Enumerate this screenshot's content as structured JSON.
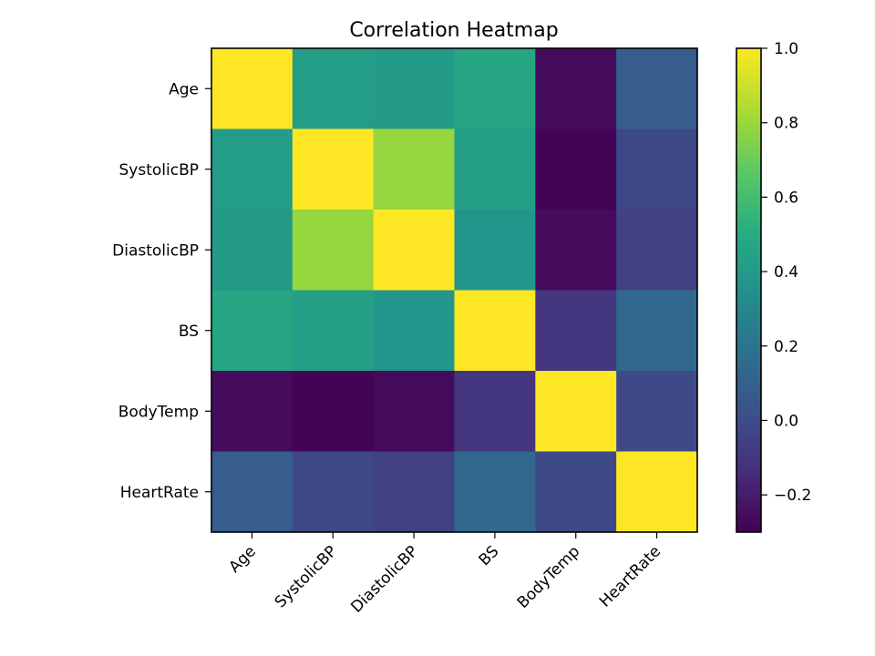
{
  "chart_data": {
    "type": "heatmap",
    "title": "Correlation Heatmap",
    "xlabel": "",
    "ylabel": "",
    "rows": [
      "Age",
      "SystolicBP",
      "DiastolicBP",
      "BS",
      "BodyTemp",
      "HeartRate"
    ],
    "columns": [
      "Age",
      "SystolicBP",
      "DiastolicBP",
      "BS",
      "BodyTemp",
      "HeartRate"
    ],
    "values": [
      [
        1.0,
        0.42,
        0.4,
        0.47,
        -0.26,
        0.08
      ],
      [
        0.42,
        1.0,
        0.79,
        0.43,
        -0.29,
        -0.02
      ],
      [
        0.4,
        0.79,
        1.0,
        0.38,
        -0.26,
        -0.05
      ],
      [
        0.47,
        0.43,
        0.38,
        1.0,
        -0.1,
        0.14
      ],
      [
        -0.26,
        -0.29,
        -0.26,
        -0.1,
        1.0,
        -0.01
      ],
      [
        0.08,
        -0.02,
        -0.05,
        0.14,
        -0.01,
        1.0
      ]
    ],
    "colorbar": {
      "vmin": -0.3,
      "vmax": 1.0,
      "ticks": [
        -0.2,
        0.0,
        0.2,
        0.4,
        0.6,
        0.8,
        1.0
      ],
      "tick_labels": [
        "−0.2",
        "0.0",
        "0.2",
        "0.4",
        "0.6",
        "0.8",
        "1.0"
      ],
      "colormap": "viridis"
    },
    "grid": false
  }
}
